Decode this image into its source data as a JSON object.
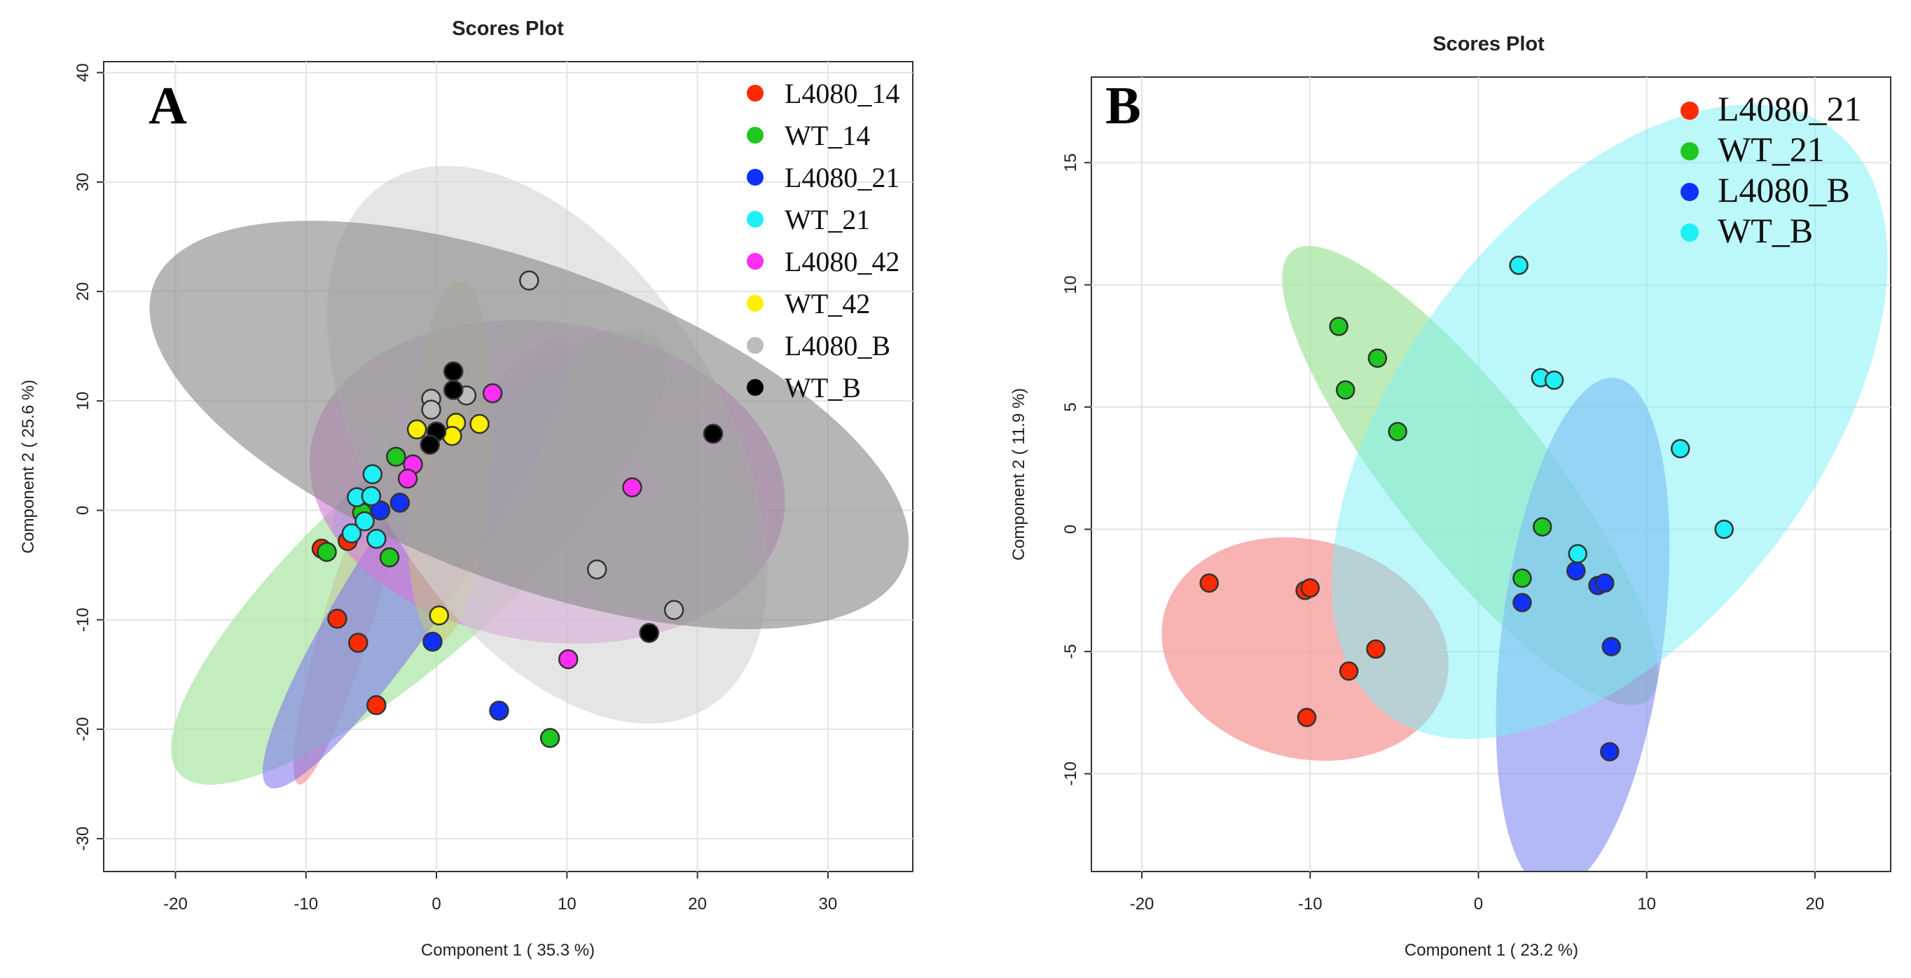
{
  "chart_data": [
    {
      "panel": "A",
      "type": "scatter",
      "title": "Scores Plot",
      "xlabel": "Component 1 ( 35.3 %)",
      "ylabel": "Component 2 ( 25.6 %)",
      "xlim": [
        -25.5,
        36.5
      ],
      "ylim": [
        -33,
        41
      ],
      "xticks": [
        -20,
        -10,
        0,
        10,
        20,
        30
      ],
      "yticks": [
        -30,
        -20,
        -10,
        0,
        10,
        20,
        30,
        40
      ],
      "grid": true,
      "legend_position": "top-right",
      "series": [
        {
          "name": "L4080_14",
          "color": "#ff2a00",
          "points": [
            [
              -8.8,
              -3.5
            ],
            [
              -6.8,
              -2.8
            ],
            [
              -7.6,
              -9.9
            ],
            [
              -6,
              -12.1
            ],
            [
              -4.6,
              -17.8
            ]
          ],
          "ellipse": {
            "cx": -6.8,
            "cy": -10,
            "rx": 15.5,
            "ry": 1.9,
            "angle": 76,
            "fill": "#f4a1a1",
            "opacity": 0.75
          }
        },
        {
          "name": "WT_14",
          "color": "#1ec81e",
          "points": [
            [
              -8.4,
              -3.8
            ],
            [
              -5.7,
              -0.2
            ],
            [
              -3.1,
              4.9
            ],
            [
              -3.6,
              -4.3
            ],
            [
              8.7,
              -20.8
            ]
          ],
          "ellipse": {
            "cx": -1.3,
            "cy": -4.3,
            "rx": 27,
            "ry": 7.8,
            "angle": 47,
            "fill": "#aae6a2",
            "opacity": 0.7
          }
        },
        {
          "name": "L4080_21",
          "color": "#1030ff",
          "points": [
            [
              -4.3,
              0
            ],
            [
              -2.8,
              0.7
            ],
            [
              -0.3,
              -12
            ],
            [
              4.8,
              -18.3
            ]
          ],
          "ellipse": {
            "cx": -1.5,
            "cy": -4.7,
            "rx": 23.5,
            "ry": 3.9,
            "angle": 61,
            "fill": "#7a70f0",
            "opacity": 0.55
          }
        },
        {
          "name": "WT_21",
          "color": "#1ef0f5",
          "points": [
            [
              -6.1,
              1.2
            ],
            [
              -4.9,
              3.3
            ],
            [
              -5,
              1.3
            ],
            [
              -6.5,
              -2.1
            ],
            [
              -5.5,
              -1
            ],
            [
              -4.6,
              -2.6
            ]
          ],
          "ellipse": {
            "cx": -5.4,
            "cy": 0,
            "rx": 3.4,
            "ry": 2.1,
            "angle": 50,
            "fill": "#7fd0ef",
            "opacity": 0.55
          }
        },
        {
          "name": "L4080_42",
          "color": "#ff2ff5",
          "points": [
            [
              4.3,
              10.7
            ],
            [
              -1.8,
              4.2
            ],
            [
              -2.2,
              2.9
            ],
            [
              15,
              2.1
            ],
            [
              10.1,
              -13.6
            ]
          ],
          "ellipse": {
            "cx": 8.5,
            "cy": 2.6,
            "rx": 18.4,
            "ry": 14.5,
            "angle": -10,
            "fill": "#d774d8",
            "opacity": 0.6
          }
        },
        {
          "name": "WT_42",
          "color": "#fff000",
          "points": [
            [
              -1.5,
              7.4
            ],
            [
              1.5,
              8
            ],
            [
              1.2,
              6.8
            ],
            [
              3.3,
              7.9
            ],
            [
              0.2,
              -9.6
            ]
          ],
          "ellipse": {
            "cx": 1,
            "cy": 4.5,
            "rx": 16.5,
            "ry": 3.2,
            "angle": 87,
            "fill": "#c8c870",
            "opacity": 0.5
          }
        },
        {
          "name": "L4080_B",
          "color": "#bcbcbc",
          "points": [
            [
              -0.4,
              10.2
            ],
            [
              -0.4,
              9.2
            ],
            [
              2.3,
              10.5
            ],
            [
              7.1,
              21
            ],
            [
              12.3,
              -5.4
            ],
            [
              18.2,
              -9.1
            ]
          ],
          "ellipse": {
            "cx": 8.5,
            "cy": 6,
            "rx": 27,
            "ry": 14,
            "angle": -63,
            "fill": "#d4d4d4",
            "opacity": 0.6
          }
        },
        {
          "name": "WT_B",
          "color": "#000000",
          "points": [
            [
              1.3,
              12.7
            ],
            [
              1.3,
              11
            ],
            [
              0,
              7.2
            ],
            [
              -0.5,
              6
            ],
            [
              21.2,
              7
            ],
            [
              16.3,
              -11.2
            ]
          ],
          "ellipse": {
            "cx": 7.1,
            "cy": 7.8,
            "rx": 31.5,
            "ry": 14,
            "angle": -24,
            "fill": "#8f8f8f",
            "opacity": 0.65
          }
        }
      ]
    },
    {
      "panel": "B",
      "type": "scatter",
      "title": "Scores Plot",
      "xlabel": "Component 1 ( 23.2 %)",
      "ylabel": "Component 2 ( 11.9 %)",
      "xlim": [
        -23,
        24.5
      ],
      "ylim": [
        -14,
        18.5
      ],
      "xticks": [
        -20,
        -10,
        0,
        10,
        20
      ],
      "yticks": [
        -10,
        -5,
        0,
        5,
        10,
        15
      ],
      "grid": true,
      "legend_position": "top-right",
      "series": [
        {
          "name": "L4080_21",
          "color": "#ff2a00",
          "points": [
            [
              -16,
              -2.2
            ],
            [
              -10.3,
              -2.5
            ],
            [
              -10,
              -2.4
            ],
            [
              -6.1,
              -4.9
            ],
            [
              -7.7,
              -5.8
            ],
            [
              -10.2,
              -7.7
            ]
          ],
          "ellipse": {
            "cx": -10.3,
            "cy": -4.9,
            "rx": 8.5,
            "ry": 4.5,
            "angle": -10,
            "fill": "#f69a9a",
            "opacity": 0.75
          }
        },
        {
          "name": "WT_21",
          "color": "#1ec81e",
          "points": [
            [
              -8.3,
              8.3
            ],
            [
              -6,
              7
            ],
            [
              -7.9,
              5.7
            ],
            [
              -4.8,
              4
            ],
            [
              3.8,
              0.1
            ],
            [
              2.6,
              -2
            ]
          ],
          "ellipse": {
            "cx": -0.5,
            "cy": 2.2,
            "rx": 14,
            "ry": 3.6,
            "angle": -41,
            "fill": "#a8e6a2",
            "opacity": 0.75
          }
        },
        {
          "name": "L4080_B",
          "color": "#1030ff",
          "points": [
            [
              5.8,
              -1.7
            ],
            [
              7.1,
              -2.3
            ],
            [
              7.5,
              -2.2
            ],
            [
              2.6,
              -3
            ],
            [
              7.9,
              -4.8
            ],
            [
              7.8,
              -9.1
            ]
          ],
          "ellipse": {
            "cx": 6.2,
            "cy": -4.3,
            "rx": 4.8,
            "ry": 10.6,
            "angle": -5,
            "fill": "#8088f0",
            "opacity": 0.6
          }
        },
        {
          "name": "WT_B",
          "color": "#1ef0f5",
          "points": [
            [
              2.4,
              10.8
            ],
            [
              3.7,
              6.2
            ],
            [
              4.5,
              6.1
            ],
            [
              12,
              3.3
            ],
            [
              14.6,
              0
            ],
            [
              5.9,
              -1
            ]
          ],
          "ellipse": {
            "cx": 7.8,
            "cy": 4.4,
            "rx": 11,
            "ry": 16,
            "angle": -28,
            "fill": "#7af0f5",
            "opacity": 0.5
          }
        }
      ]
    }
  ]
}
